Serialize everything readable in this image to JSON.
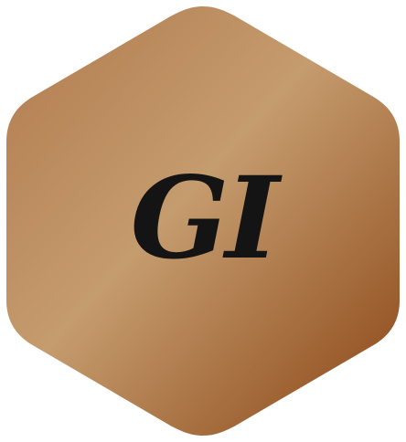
{
  "logo": {
    "initials": "GI",
    "icon": "hexagon-badge",
    "colors": {
      "gradient_start": "#b07a4e",
      "gradient_mid": "#c59c6e",
      "gradient_end": "#8a4414",
      "text": "#141414",
      "background": "#ffffff"
    }
  }
}
